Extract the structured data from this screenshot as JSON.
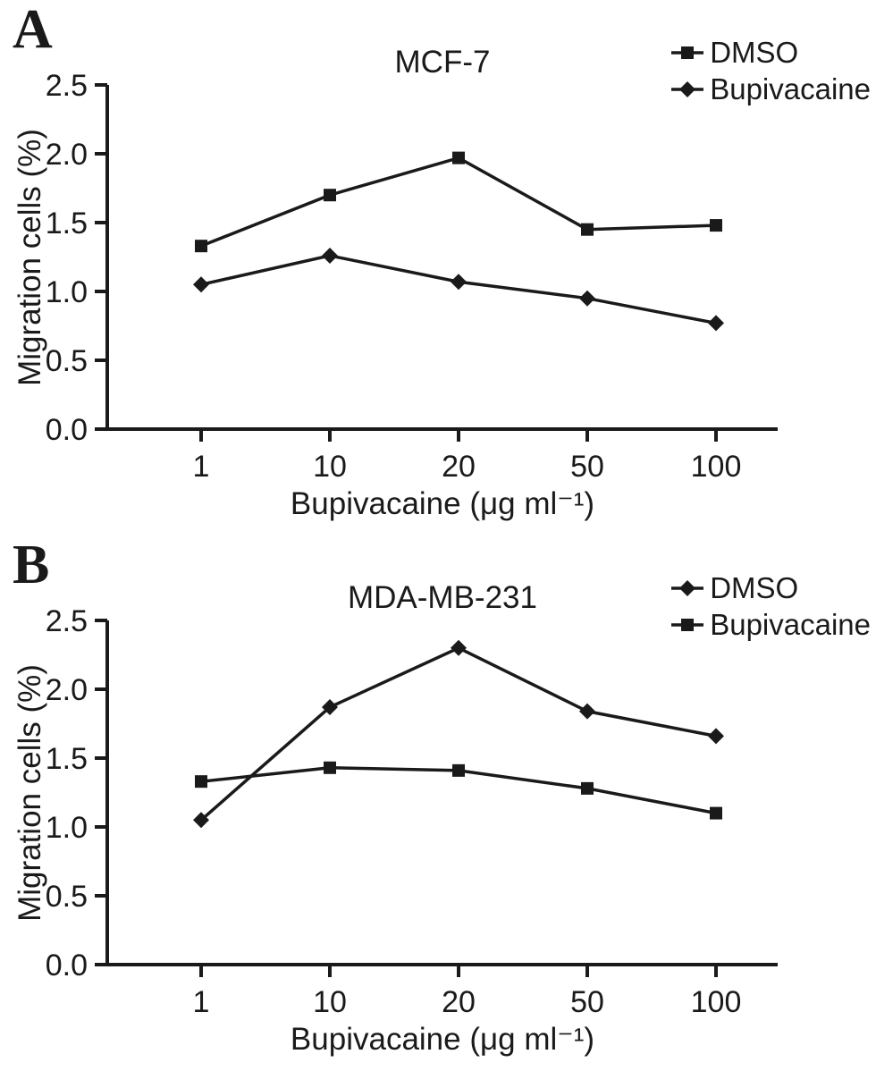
{
  "figure": {
    "background": "#ffffff",
    "line_color": "#1a1a1a"
  },
  "chart_data": [
    {
      "type": "line",
      "panel_label": "A",
      "title": "MCF-7",
      "xlabel": "Bupivacaine (μg ml⁻¹)",
      "ylabel": "Migration cells (%)",
      "categories": [
        "1",
        "10",
        "20",
        "50",
        "100"
      ],
      "ylim": [
        0.0,
        2.5
      ],
      "yticks": [
        "0.0",
        "0.5",
        "1.0",
        "1.5",
        "2.0",
        "2.5"
      ],
      "grid": false,
      "legend_position": "top-right",
      "series": [
        {
          "name": "DMSO",
          "marker": "square",
          "values": [
            1.33,
            1.7,
            1.97,
            1.45,
            1.48
          ]
        },
        {
          "name": "Bupivacaine",
          "marker": "diamond",
          "values": [
            1.05,
            1.26,
            1.07,
            0.95,
            0.77
          ]
        }
      ]
    },
    {
      "type": "line",
      "panel_label": "B",
      "title": "MDA-MB-231",
      "xlabel": "Bupivacaine (μg ml⁻¹)",
      "ylabel": "Migration cells (%)",
      "categories": [
        "1",
        "10",
        "20",
        "50",
        "100"
      ],
      "ylim": [
        0.0,
        2.5
      ],
      "yticks": [
        "0.0",
        "0.5",
        "1.0",
        "1.5",
        "2.0",
        "2.5"
      ],
      "grid": false,
      "legend_position": "top-right",
      "series": [
        {
          "name": "DMSO",
          "marker": "diamond",
          "values": [
            1.05,
            1.87,
            2.3,
            1.84,
            1.66
          ]
        },
        {
          "name": "Bupivacaine",
          "marker": "square",
          "values": [
            1.33,
            1.43,
            1.41,
            1.28,
            1.1
          ]
        }
      ]
    }
  ]
}
